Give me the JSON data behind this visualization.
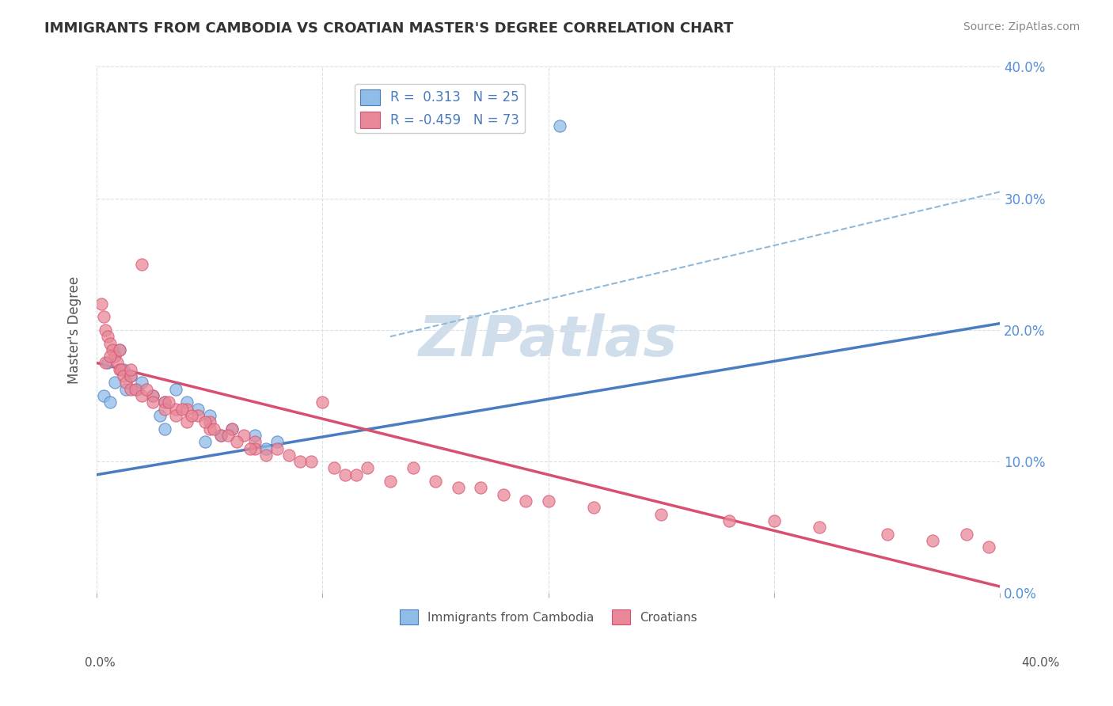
{
  "title": "IMMIGRANTS FROM CAMBODIA VS CROATIAN MASTER'S DEGREE CORRELATION CHART",
  "source": "Source: ZipAtlas.com",
  "ylabel": "Master's Degree",
  "legend_entries": [
    {
      "label": "Immigrants from Cambodia",
      "R": "0.313",
      "N": "25",
      "color": "#a8c8f0"
    },
    {
      "label": "Croatians",
      "R": "-0.459",
      "N": "73",
      "color": "#f0a8b8"
    }
  ],
  "watermark": "ZIPatlas",
  "xlim": [
    0.0,
    40.0
  ],
  "ylim": [
    0.0,
    40.0
  ],
  "ytick_values": [
    0,
    10,
    20,
    30,
    40
  ],
  "xtick_values": [
    0,
    10,
    20,
    30,
    40
  ],
  "blue_scatter": [
    [
      0.5,
      17.5
    ],
    [
      0.8,
      16.0
    ],
    [
      1.0,
      18.5
    ],
    [
      1.2,
      17.0
    ],
    [
      1.5,
      16.5
    ],
    [
      1.8,
      15.5
    ],
    [
      2.0,
      16.0
    ],
    [
      2.5,
      15.0
    ],
    [
      3.0,
      14.5
    ],
    [
      3.5,
      15.5
    ],
    [
      4.0,
      14.5
    ],
    [
      4.5,
      14.0
    ],
    [
      5.0,
      13.5
    ],
    [
      6.0,
      12.5
    ],
    [
      7.0,
      12.0
    ],
    [
      0.3,
      15.0
    ],
    [
      0.6,
      14.5
    ],
    [
      1.3,
      15.5
    ],
    [
      2.8,
      13.5
    ],
    [
      4.8,
      11.5
    ],
    [
      7.5,
      11.0
    ],
    [
      3.0,
      12.5
    ],
    [
      5.5,
      12.0
    ],
    [
      8.0,
      11.5
    ],
    [
      20.5,
      35.5
    ]
  ],
  "pink_scatter": [
    [
      0.2,
      22.0
    ],
    [
      0.3,
      21.0
    ],
    [
      0.4,
      20.0
    ],
    [
      0.5,
      19.5
    ],
    [
      0.6,
      19.0
    ],
    [
      0.7,
      18.5
    ],
    [
      0.8,
      18.0
    ],
    [
      0.9,
      17.5
    ],
    [
      1.0,
      17.0
    ],
    [
      1.0,
      18.5
    ],
    [
      1.1,
      17.0
    ],
    [
      1.2,
      16.5
    ],
    [
      1.3,
      16.0
    ],
    [
      1.5,
      16.5
    ],
    [
      1.5,
      15.5
    ],
    [
      1.7,
      15.5
    ],
    [
      2.0,
      25.0
    ],
    [
      2.0,
      15.0
    ],
    [
      2.5,
      15.0
    ],
    [
      2.5,
      14.5
    ],
    [
      3.0,
      14.5
    ],
    [
      3.0,
      14.0
    ],
    [
      3.5,
      14.0
    ],
    [
      3.5,
      13.5
    ],
    [
      4.0,
      14.0
    ],
    [
      4.0,
      13.0
    ],
    [
      4.5,
      13.5
    ],
    [
      5.0,
      13.0
    ],
    [
      5.0,
      12.5
    ],
    [
      5.5,
      12.0
    ],
    [
      6.0,
      12.5
    ],
    [
      6.5,
      12.0
    ],
    [
      7.0,
      11.5
    ],
    [
      7.0,
      11.0
    ],
    [
      8.0,
      11.0
    ],
    [
      0.4,
      17.5
    ],
    [
      0.6,
      18.0
    ],
    [
      1.5,
      17.0
    ],
    [
      2.2,
      15.5
    ],
    [
      3.2,
      14.5
    ],
    [
      3.8,
      14.0
    ],
    [
      4.2,
      13.5
    ],
    [
      4.8,
      13.0
    ],
    [
      5.2,
      12.5
    ],
    [
      5.8,
      12.0
    ],
    [
      6.2,
      11.5
    ],
    [
      6.8,
      11.0
    ],
    [
      7.5,
      10.5
    ],
    [
      8.5,
      10.5
    ],
    [
      9.5,
      10.0
    ],
    [
      10.0,
      14.5
    ],
    [
      10.5,
      9.5
    ],
    [
      11.0,
      9.0
    ],
    [
      11.5,
      9.0
    ],
    [
      12.0,
      9.5
    ],
    [
      13.0,
      8.5
    ],
    [
      14.0,
      9.5
    ],
    [
      15.0,
      8.5
    ],
    [
      16.0,
      8.0
    ],
    [
      17.0,
      8.0
    ],
    [
      18.0,
      7.5
    ],
    [
      19.0,
      7.0
    ],
    [
      20.0,
      7.0
    ],
    [
      22.0,
      6.5
    ],
    [
      25.0,
      6.0
    ],
    [
      28.0,
      5.5
    ],
    [
      30.0,
      5.5
    ],
    [
      32.0,
      5.0
    ],
    [
      35.0,
      4.5
    ],
    [
      37.0,
      4.0
    ],
    [
      38.5,
      4.5
    ],
    [
      39.5,
      3.5
    ],
    [
      9.0,
      10.0
    ]
  ],
  "blue_line": {
    "x0": 0,
    "y0": 9.0,
    "x1": 40,
    "y1": 20.5
  },
  "pink_line": {
    "x0": 0,
    "y0": 17.5,
    "x1": 40,
    "y1": 0.5
  },
  "blue_dash_line": {
    "x0": 13,
    "y0": 19.5,
    "x1": 40,
    "y1": 30.5
  },
  "colors": {
    "blue_scatter": "#90bce8",
    "pink_scatter": "#e88898",
    "blue_line": "#4a7cc0",
    "pink_line": "#d85070",
    "blue_dash": "#90b8d8",
    "grid": "#d8e0e8",
    "title": "#333333",
    "right_tick": "#5590d8",
    "axis_ylabel": "#555555",
    "source": "#888888",
    "watermark": "#c8d8e8",
    "legend_border": "#cccccc",
    "legend_text": "#4a7cc0"
  },
  "background_color": "#ffffff"
}
